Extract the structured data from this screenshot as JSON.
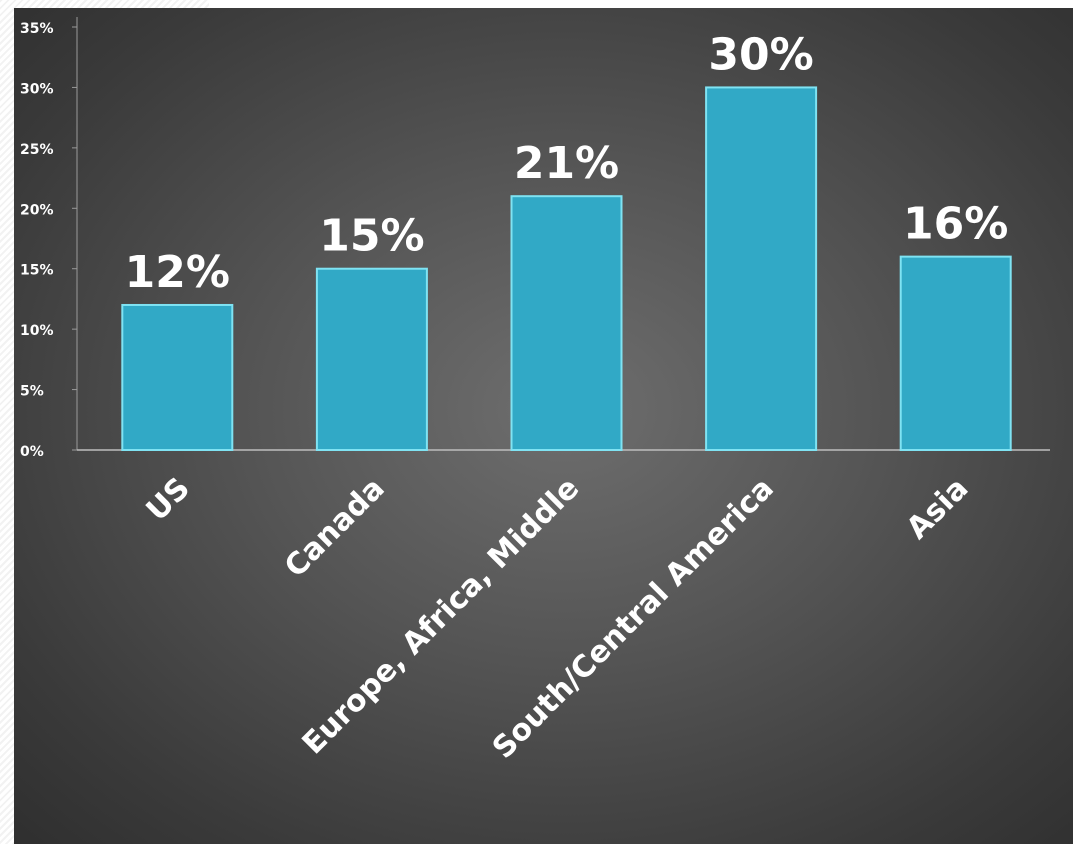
{
  "chart_data": {
    "type": "bar",
    "categories": [
      "US",
      "Canada",
      "Europe, Africa, Middle",
      "South/Central  America",
      "Asia"
    ],
    "values": [
      12,
      15,
      21,
      30,
      16
    ],
    "data_labels": [
      "12%",
      "15%",
      "21%",
      "30%",
      "16%"
    ],
    "yticks": [
      "0%",
      "5%",
      "10%",
      "15%",
      "20%",
      "25%",
      "30%",
      "35%"
    ],
    "ylim": [
      0,
      35
    ],
    "grid": false,
    "bar_color": "#31a9c6",
    "bar_edge_color": "#7fe3f3",
    "background_color": "#555555",
    "text_color": "#ffffff"
  }
}
